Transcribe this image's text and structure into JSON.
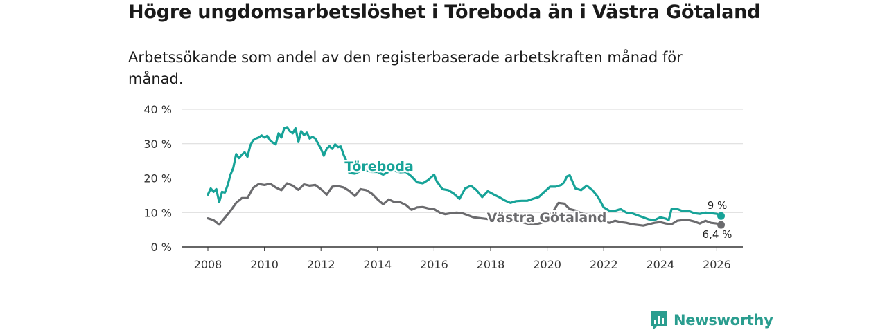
{
  "title": "Högre ungdomsarbetslöshet i Töreboda än i Västra Götaland",
  "subtitle": "Arbetssökande som andel av den registerbaserade arbetskraften månad för månad.",
  "brand": "Newsworthy",
  "colors": {
    "toreboda": "#17a398",
    "vg": "#6b6b6e",
    "grid": "#d9d9d9",
    "axis": "#333333"
  },
  "chart_data": {
    "type": "line",
    "title": "Högre ungdomsarbetslöshet i Töreboda än i Västra Götaland",
    "xlabel": "",
    "ylabel": "",
    "xlim": [
      2007.7,
      2026.9
    ],
    "ylim": [
      0,
      40
    ],
    "y_ticks": [
      0,
      10,
      20,
      30,
      40
    ],
    "y_tick_labels": [
      "0 %",
      "10 %",
      "20 %",
      "30 %",
      "40 %"
    ],
    "x_ticks": [
      2008,
      2010,
      2012,
      2014,
      2016,
      2018,
      2020,
      2022,
      2024,
      2026
    ],
    "x_tick_labels": [
      "2008",
      "2010",
      "2012",
      "2014",
      "2016",
      "2018",
      "2020",
      "2022",
      "2024",
      "2026"
    ],
    "series": [
      {
        "name": "Töreboda",
        "label": "Töreboda",
        "end_label": "9 %",
        "x": [
          2008.0,
          2008.1,
          2008.2,
          2008.3,
          2008.4,
          2008.5,
          2008.6,
          2008.7,
          2008.8,
          2008.9,
          2009.0,
          2009.1,
          2009.2,
          2009.3,
          2009.4,
          2009.5,
          2009.6,
          2009.7,
          2009.8,
          2009.9,
          2010.0,
          2010.1,
          2010.2,
          2010.3,
          2010.4,
          2010.5,
          2010.6,
          2010.7,
          2010.8,
          2010.9,
          2011.0,
          2011.1,
          2011.2,
          2011.3,
          2011.4,
          2011.5,
          2011.6,
          2011.7,
          2011.8,
          2011.9,
          2012.0,
          2012.1,
          2012.2,
          2012.3,
          2012.4,
          2012.5,
          2012.6,
          2012.7,
          2012.8,
          2012.9,
          2013.0,
          2013.2,
          2013.5,
          2013.8,
          2014.0,
          2014.2,
          2014.5,
          2014.8,
          2015.0,
          2015.2,
          2015.4,
          2015.6,
          2015.8,
          2016.0,
          2016.1,
          2016.3,
          2016.5,
          2016.7,
          2016.9,
          2017.1,
          2017.3,
          2017.5,
          2017.7,
          2017.9,
          2018.1,
          2018.3,
          2018.5,
          2018.7,
          2018.9,
          2019.1,
          2019.3,
          2019.5,
          2019.7,
          2019.9,
          2020.1,
          2020.3,
          2020.5,
          2020.6,
          2020.7,
          2020.8,
          2021.0,
          2021.2,
          2021.4,
          2021.6,
          2021.8,
          2022.0,
          2022.2,
          2022.4,
          2022.6,
          2022.8,
          2023.0,
          2023.2,
          2023.4,
          2023.6,
          2023.8,
          2024.0,
          2024.2,
          2024.3,
          2024.4,
          2024.6,
          2024.8,
          2025.0,
          2025.2,
          2025.4,
          2025.6,
          2025.8,
          2026.0,
          2026.15
        ],
        "values": [
          15.2,
          17.0,
          16.0,
          16.8,
          13.0,
          16.0,
          15.8,
          18.0,
          21.0,
          23.0,
          27.0,
          25.8,
          26.8,
          27.5,
          26.2,
          29.5,
          31.0,
          31.5,
          31.8,
          32.4,
          31.8,
          32.3,
          31.0,
          30.3,
          29.8,
          33.0,
          31.8,
          34.5,
          34.8,
          33.6,
          33.0,
          34.5,
          30.5,
          33.6,
          32.5,
          33.2,
          31.5,
          32.0,
          31.5,
          30.0,
          28.5,
          26.5,
          28.5,
          29.3,
          28.5,
          29.8,
          29.0,
          29.2,
          26.8,
          25.0,
          21.5,
          21.3,
          22.5,
          21.8,
          21.8,
          21.0,
          22.3,
          21.7,
          21.8,
          20.5,
          18.8,
          18.5,
          19.5,
          21.0,
          19.0,
          16.8,
          16.5,
          15.5,
          14.0,
          17.0,
          17.8,
          16.5,
          14.5,
          16.2,
          15.3,
          14.5,
          13.5,
          12.8,
          13.3,
          13.4,
          13.4,
          14.0,
          14.5,
          16.0,
          17.5,
          17.5,
          18.0,
          18.8,
          20.5,
          20.8,
          17.0,
          16.5,
          17.8,
          16.5,
          14.5,
          11.5,
          10.5,
          10.5,
          11.0,
          10.0,
          9.8,
          9.2,
          8.6,
          8.0,
          7.8,
          8.6,
          8.2,
          7.8,
          11.0,
          11.0,
          10.4,
          10.5,
          9.8,
          9.6,
          10.0,
          9.8,
          9.6,
          9.0
        ]
      },
      {
        "name": "Västra Götaland",
        "label": "Västra Götaland",
        "end_label": "6,4 %",
        "x": [
          2008.0,
          2008.2,
          2008.4,
          2008.6,
          2008.8,
          2009.0,
          2009.2,
          2009.4,
          2009.6,
          2009.8,
          2010.0,
          2010.2,
          2010.4,
          2010.6,
          2010.8,
          2011.0,
          2011.2,
          2011.4,
          2011.6,
          2011.8,
          2012.0,
          2012.2,
          2012.4,
          2012.6,
          2012.8,
          2013.0,
          2013.2,
          2013.4,
          2013.6,
          2013.8,
          2014.0,
          2014.2,
          2014.4,
          2014.6,
          2014.8,
          2015.0,
          2015.2,
          2015.4,
          2015.6,
          2015.8,
          2016.0,
          2016.2,
          2016.4,
          2016.6,
          2016.8,
          2017.0,
          2017.2,
          2017.4,
          2017.6,
          2017.8,
          2018.0,
          2018.2,
          2018.4,
          2018.6,
          2018.8,
          2019.0,
          2019.2,
          2019.4,
          2019.6,
          2019.8,
          2020.0,
          2020.2,
          2020.4,
          2020.6,
          2020.8,
          2021.0,
          2021.2,
          2021.4,
          2021.6,
          2021.8,
          2022.0,
          2022.2,
          2022.4,
          2022.6,
          2022.8,
          2023.0,
          2023.2,
          2023.4,
          2023.6,
          2023.8,
          2024.0,
          2024.2,
          2024.4,
          2024.6,
          2024.8,
          2025.0,
          2025.2,
          2025.4,
          2025.6,
          2025.8,
          2026.0,
          2026.15
        ],
        "values": [
          8.3,
          7.8,
          6.5,
          8.5,
          10.5,
          12.8,
          14.2,
          14.2,
          17.2,
          18.3,
          18.0,
          18.4,
          17.3,
          16.5,
          18.5,
          17.8,
          16.6,
          18.2,
          17.8,
          18.0,
          16.8,
          15.2,
          17.5,
          17.7,
          17.3,
          16.3,
          14.8,
          16.8,
          16.5,
          15.5,
          13.8,
          12.4,
          13.8,
          13.0,
          13.0,
          12.2,
          10.8,
          11.5,
          11.6,
          11.2,
          11.0,
          10.0,
          9.5,
          9.8,
          10.0,
          9.8,
          9.2,
          8.6,
          8.4,
          8.2,
          8.0,
          7.8,
          7.6,
          7.4,
          7.2,
          7.2,
          7.0,
          6.6,
          6.6,
          7.0,
          8.2,
          10.2,
          12.8,
          12.6,
          11.0,
          10.6,
          9.8,
          9.4,
          9.0,
          8.2,
          7.4,
          7.0,
          7.6,
          7.2,
          7.0,
          6.6,
          6.4,
          6.2,
          6.6,
          7.0,
          7.2,
          6.8,
          6.6,
          7.6,
          7.8,
          7.8,
          7.4,
          6.8,
          7.6,
          7.0,
          6.8,
          6.4
        ]
      }
    ]
  }
}
